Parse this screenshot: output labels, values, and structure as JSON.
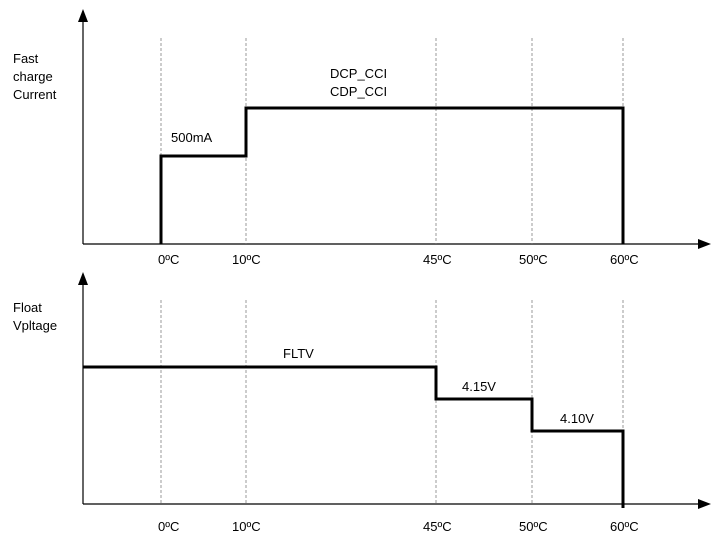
{
  "top_panel": {
    "ylabel_lines": [
      "Fast",
      "charge",
      "Current"
    ],
    "segment_labels": {
      "low": "500mA",
      "high_line1": "DCP_CCI",
      "high_line2": "CDP_CCI"
    },
    "temps": [
      "0ºC",
      "10ºC",
      "45ºC",
      "50ºC",
      "60ºC"
    ]
  },
  "bottom_panel": {
    "ylabel_lines": [
      "Float",
      "Vpltage"
    ],
    "segment_labels": {
      "flt": "FLTV",
      "mid": "4.15V",
      "low": "4.10V"
    },
    "temps": [
      "0ºC",
      "10ºC",
      "45ºC",
      "50ºC",
      "60ºC"
    ]
  }
}
